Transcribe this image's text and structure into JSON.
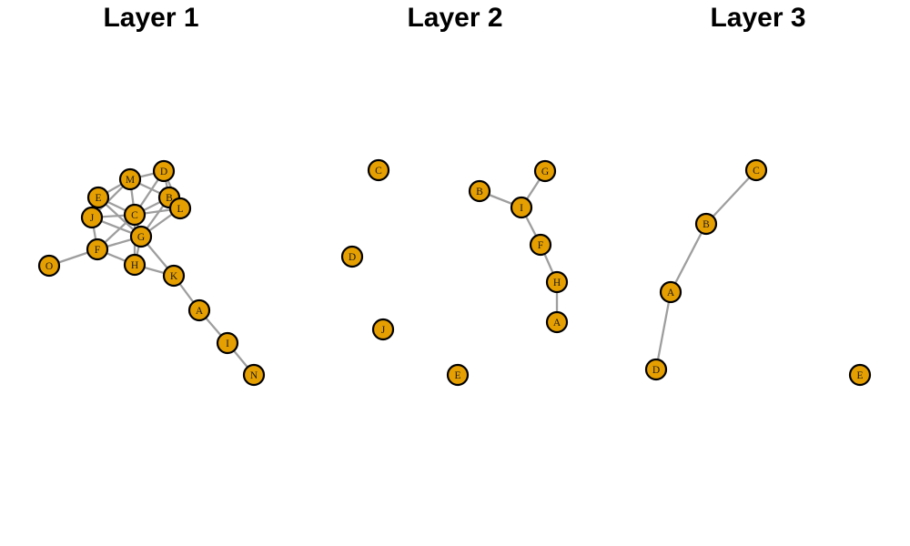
{
  "colors": {
    "node_fill": "#E69F00",
    "node_stroke": "#000000",
    "edge": "#9e9e9e",
    "title": "#000000"
  },
  "layers": [
    {
      "title": "Layer 1",
      "nodes": [
        "M",
        "D",
        "E",
        "B",
        "L",
        "J",
        "C",
        "G",
        "F",
        "O",
        "H",
        "K",
        "A",
        "I",
        "N"
      ],
      "edges": [
        [
          "M",
          "D"
        ],
        [
          "M",
          "E"
        ],
        [
          "M",
          "C"
        ],
        [
          "M",
          "B"
        ],
        [
          "M",
          "J"
        ],
        [
          "D",
          "B"
        ],
        [
          "D",
          "C"
        ],
        [
          "D",
          "L"
        ],
        [
          "E",
          "J"
        ],
        [
          "E",
          "C"
        ],
        [
          "E",
          "G"
        ],
        [
          "B",
          "C"
        ],
        [
          "B",
          "L"
        ],
        [
          "B",
          "G"
        ],
        [
          "L",
          "G"
        ],
        [
          "L",
          "C"
        ],
        [
          "J",
          "F"
        ],
        [
          "J",
          "C"
        ],
        [
          "J",
          "G"
        ],
        [
          "C",
          "G"
        ],
        [
          "C",
          "F"
        ],
        [
          "C",
          "H"
        ],
        [
          "G",
          "F"
        ],
        [
          "G",
          "H"
        ],
        [
          "G",
          "K"
        ],
        [
          "F",
          "H"
        ],
        [
          "F",
          "O"
        ],
        [
          "H",
          "K"
        ],
        [
          "K",
          "A"
        ],
        [
          "A",
          "I"
        ],
        [
          "I",
          "N"
        ]
      ]
    },
    {
      "title": "Layer 2",
      "nodes": [
        "C",
        "D",
        "J",
        "E",
        "B",
        "I",
        "G",
        "F",
        "H",
        "A"
      ],
      "edges": [
        [
          "B",
          "I"
        ],
        [
          "I",
          "G"
        ],
        [
          "I",
          "F"
        ],
        [
          "F",
          "H"
        ],
        [
          "H",
          "A"
        ]
      ]
    },
    {
      "title": "Layer 3",
      "nodes": [
        "C",
        "B",
        "A",
        "D",
        "E"
      ],
      "edges": [
        [
          "C",
          "B"
        ],
        [
          "B",
          "A"
        ],
        [
          "A",
          "D"
        ]
      ]
    }
  ]
}
